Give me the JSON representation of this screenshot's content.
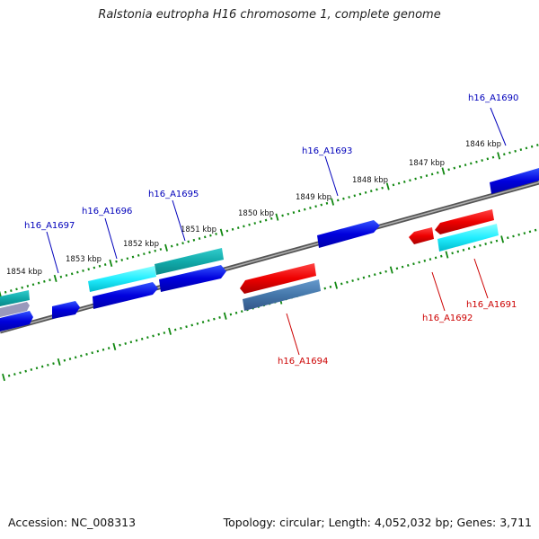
{
  "title": "Ralstonia eutropha H16 chromosome 1, complete genome",
  "footer": {
    "accession": "Accession: NC_008313",
    "summary": "Topology: circular; Length: 4,052,032 bp; Genes: 3,711"
  },
  "colors": {
    "backbone": "#808080",
    "tick": "#118811",
    "tick_label": "#111111",
    "forward_label": "#0000bb",
    "reverse_label": "#cc0000",
    "forward_cds": "#0000dd",
    "forward_rna": "#11bbbb",
    "reverse_cds": "#ee0000",
    "reverse_rna": "#00ddee",
    "reverse_misc": "#4477aa"
  },
  "tick_labels": [
    "1854 kbp",
    "1853 kbp",
    "1852 kbp",
    "1851 kbp",
    "1850 kbp",
    "1849 kbp",
    "1848 kbp",
    "1847 kbp",
    "1846 kbp"
  ],
  "gene_labels": [
    {
      "text": "h16_A1690",
      "strand": "forward"
    },
    {
      "text": "h16_A1693",
      "strand": "forward"
    },
    {
      "text": "h16_A1695",
      "strand": "forward"
    },
    {
      "text": "h16_A1696",
      "strand": "forward"
    },
    {
      "text": "h16_A1697",
      "strand": "forward"
    },
    {
      "text": "h16_A1691",
      "strand": "reverse"
    },
    {
      "text": "h16_A1692",
      "strand": "reverse"
    },
    {
      "text": "h16_A1694",
      "strand": "reverse"
    }
  ]
}
